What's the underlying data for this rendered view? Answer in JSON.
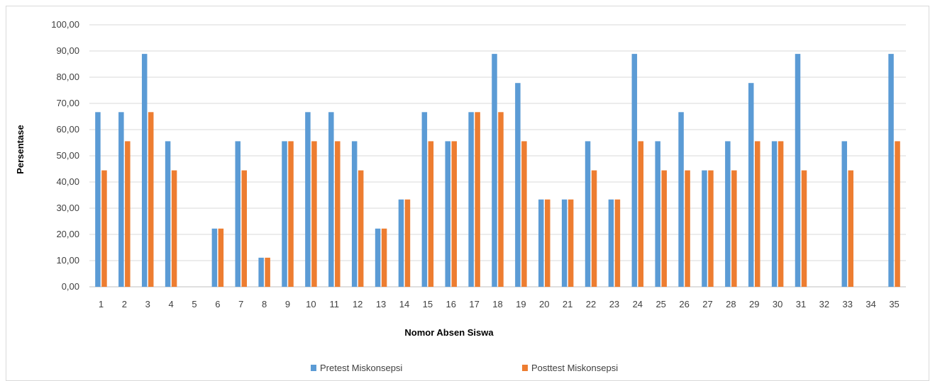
{
  "chart_data": {
    "type": "bar",
    "title": "",
    "xlabel": "Nomor Absen Siswa",
    "ylabel": "Persentase",
    "ylim": [
      0,
      100
    ],
    "yticks": [
      "0,00",
      "10,00",
      "20,00",
      "30,00",
      "40,00",
      "50,00",
      "60,00",
      "70,00",
      "80,00",
      "90,00",
      "100,00"
    ],
    "grid": true,
    "legend_position": "bottom",
    "categories": [
      "1",
      "2",
      "3",
      "4",
      "5",
      "6",
      "7",
      "8",
      "9",
      "10",
      "11",
      "12",
      "13",
      "14",
      "15",
      "16",
      "17",
      "18",
      "19",
      "20",
      "21",
      "22",
      "23",
      "24",
      "25",
      "26",
      "27",
      "28",
      "29",
      "30",
      "31",
      "32",
      "33",
      "34",
      "35"
    ],
    "series": [
      {
        "name": "Pretest Miskonsepsi",
        "color": "#5b9bd5",
        "values": [
          66.67,
          66.67,
          88.89,
          55.56,
          0,
          22.22,
          55.56,
          11.11,
          55.56,
          66.67,
          66.67,
          55.56,
          22.22,
          33.33,
          66.67,
          55.56,
          66.67,
          88.89,
          77.78,
          33.33,
          33.33,
          55.56,
          33.33,
          88.89,
          55.56,
          66.67,
          44.44,
          55.56,
          77.78,
          55.56,
          88.89,
          0,
          55.56,
          0,
          88.89
        ]
      },
      {
        "name": "Posttest Miskonsepsi",
        "color": "#ed7d31",
        "values": [
          44.44,
          55.56,
          66.67,
          44.44,
          0,
          22.22,
          44.44,
          11.11,
          55.56,
          55.56,
          55.56,
          44.44,
          22.22,
          33.33,
          55.56,
          55.56,
          66.67,
          66.67,
          55.56,
          33.33,
          33.33,
          44.44,
          33.33,
          55.56,
          44.44,
          44.44,
          44.44,
          44.44,
          55.56,
          55.56,
          44.44,
          0,
          44.44,
          0,
          55.56
        ]
      }
    ]
  }
}
